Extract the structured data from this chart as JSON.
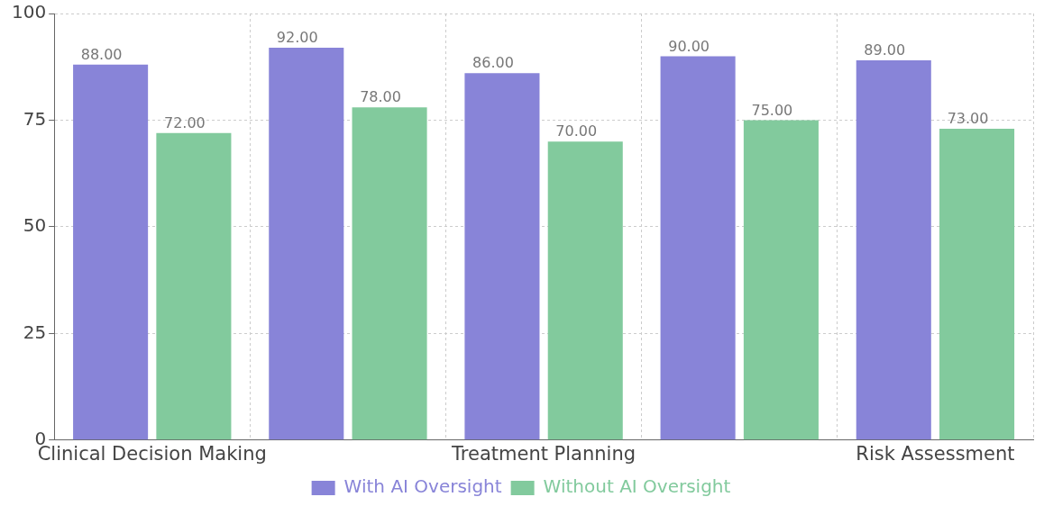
{
  "chart_data": {
    "type": "bar",
    "categories": [
      "Clinical Decision Making",
      null,
      "Treatment Planning",
      null,
      "Risk Assessment"
    ],
    "series": [
      {
        "name": "With AI Oversight",
        "color": "#8884d8",
        "values": [
          88,
          92,
          86,
          90,
          89
        ],
        "value_labels": [
          "88.00",
          "92.00",
          "86.00",
          "90.00",
          "89.00"
        ]
      },
      {
        "name": "Without AI Oversight",
        "color": "#82ca9d",
        "values": [
          72,
          78,
          70,
          75,
          73
        ],
        "value_labels": [
          "72.00",
          "78.00",
          "70.00",
          "75.00",
          "73.00"
        ]
      }
    ],
    "ylim": [
      0,
      100
    ],
    "yticks": [
      0,
      25,
      50,
      75,
      100
    ],
    "grid": true,
    "legend": "bottom"
  }
}
